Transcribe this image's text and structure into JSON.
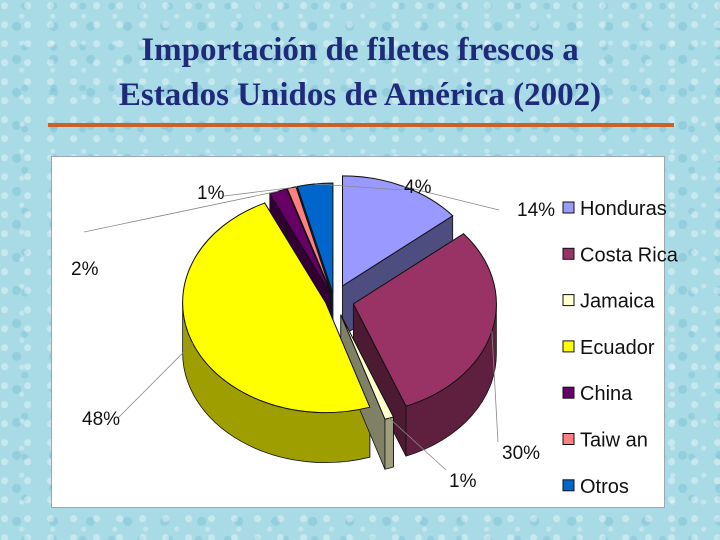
{
  "slide": {
    "title_line1": "Importación de filetes frescos a",
    "title_line2": "Estados Unidos de América (2002)"
  },
  "chart_data": {
    "type": "pie",
    "title": "Importación de filetes frescos a Estados Unidos de América (2002)",
    "categories": [
      "Honduras",
      "Costa Rica",
      "Jamaica",
      "Ecuador",
      "China",
      "Taiw an",
      "Otros"
    ],
    "values": [
      14,
      30,
      1,
      48,
      2,
      1,
      4
    ],
    "value_labels": [
      "14%",
      "30%",
      "1%",
      "48%",
      "2%",
      "1%",
      "4%"
    ],
    "colors": [
      "#9999ff",
      "#993366",
      "#ffffcc",
      "#ffff00",
      "#660066",
      "#ff8080",
      "#0066cc"
    ],
    "legend": "right",
    "exploded": true,
    "style": "3d"
  }
}
